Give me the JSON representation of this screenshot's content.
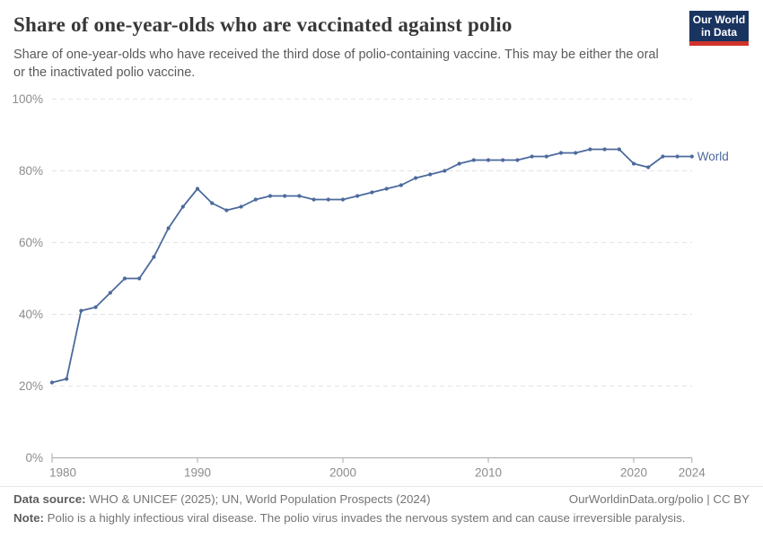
{
  "header": {
    "title": "Share of one-year-olds who are vaccinated against polio",
    "subtitle": "Share of one-year-olds who have received the third dose of polio-containing vaccine. This may be either the oral or the inactivated polio vaccine.",
    "logo": {
      "line1": "Our World",
      "line2": "in Data"
    }
  },
  "colors": {
    "line": "#4C6A9C",
    "logo_bg": "#1A3460",
    "logo_bar": "#D0342C",
    "gridline": "#e3e3e3",
    "axis": "#a8a8a8",
    "tick_label": "#8c8c8c"
  },
  "chart_data": {
    "type": "line",
    "title": "Share of one-year-olds who are vaccinated against polio",
    "subtitle": "Share of one-year-olds who have received the third dose of polio-containing vaccine. This may be either the oral or the inactivated polio vaccine.",
    "xlabel": "",
    "ylabel": "",
    "xlim": [
      1980,
      2024
    ],
    "ylim": [
      0,
      100
    ],
    "grid": true,
    "legend_position": "end-of-line",
    "x_ticks": [
      1980,
      1990,
      2000,
      2010,
      2020,
      2024
    ],
    "y_ticks": [
      0,
      20,
      40,
      60,
      80,
      100
    ],
    "y_tick_suffix": "%",
    "series": [
      {
        "name": "World",
        "x": [
          1980,
          1981,
          1982,
          1983,
          1984,
          1985,
          1986,
          1987,
          1988,
          1989,
          1990,
          1991,
          1992,
          1993,
          1994,
          1995,
          1996,
          1997,
          1998,
          1999,
          2000,
          2001,
          2002,
          2003,
          2004,
          2005,
          2006,
          2007,
          2008,
          2009,
          2010,
          2011,
          2012,
          2013,
          2014,
          2015,
          2016,
          2017,
          2018,
          2019,
          2020,
          2021,
          2022,
          2023,
          2024
        ],
        "values": [
          21,
          22,
          41,
          42,
          46,
          50,
          50,
          56,
          64,
          70,
          75,
          71,
          69,
          70,
          72,
          73,
          73,
          73,
          72,
          72,
          72,
          73,
          74,
          75,
          76,
          78,
          79,
          80,
          82,
          83,
          83,
          83,
          83,
          84,
          84,
          85,
          85,
          86,
          86,
          86,
          82,
          81,
          84,
          84,
          84
        ]
      }
    ]
  },
  "footer": {
    "datasource_label": "Data source:",
    "datasource_text": " WHO & UNICEF (2025); UN, World Population Prospects (2024)",
    "link": "OurWorldinData.org/polio | CC BY",
    "note_label": "Note:",
    "note_text": " Polio is a highly infectious viral disease. The polio virus invades the nervous system and can cause irreversible paralysis."
  }
}
